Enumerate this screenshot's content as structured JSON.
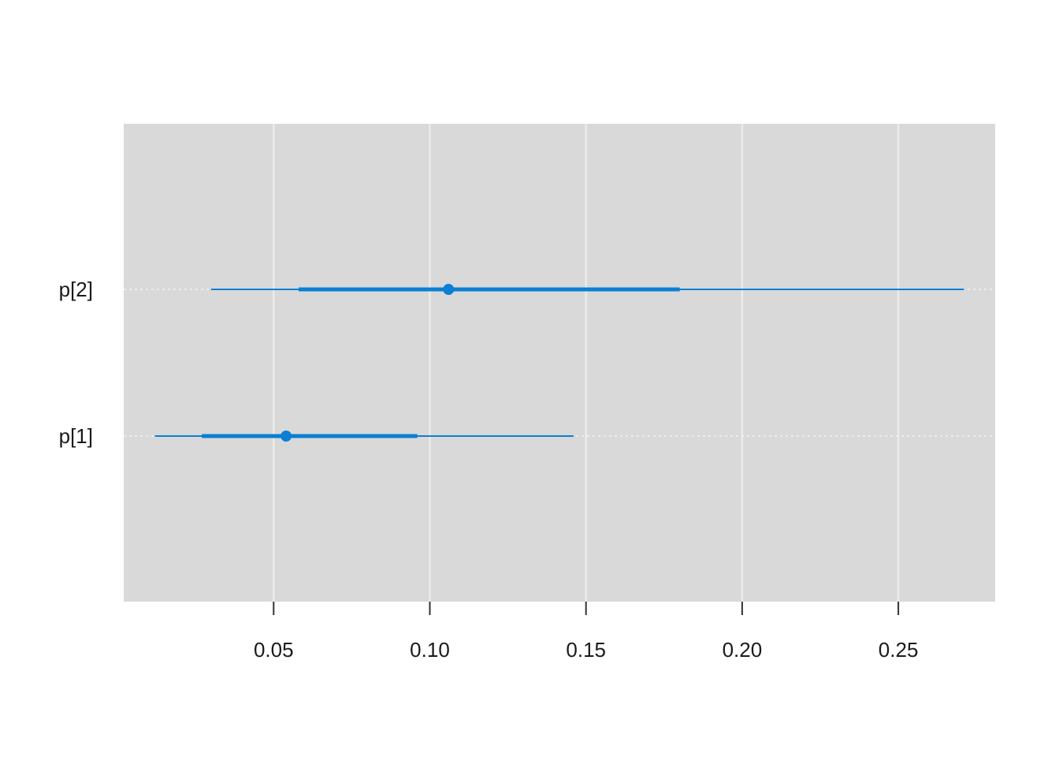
{
  "chart_data": {
    "type": "scatter",
    "title": "",
    "xlabel": "",
    "ylabel": "",
    "xlim": [
      0.002,
      0.281
    ],
    "x_ticks": [
      0.05,
      0.1,
      0.15,
      0.2,
      0.25
    ],
    "x_tick_labels": [
      "0.05",
      "0.10",
      "0.15",
      "0.20",
      "0.25"
    ],
    "grid": true,
    "legend": "none",
    "parameters": [
      {
        "label": "p[2]",
        "estimate": 0.106,
        "inner_interval": [
          0.058,
          0.18
        ],
        "outer_interval": [
          0.03,
          0.271
        ]
      },
      {
        "label": "p[1]",
        "estimate": 0.054,
        "inner_interval": [
          0.027,
          0.096
        ],
        "outer_interval": [
          0.012,
          0.146
        ]
      }
    ],
    "colors": {
      "series": "#0a7fd4",
      "panel_background": "#d9d9d9",
      "grid": "#ebebeb",
      "row_guide": "#f2f2f2"
    }
  }
}
